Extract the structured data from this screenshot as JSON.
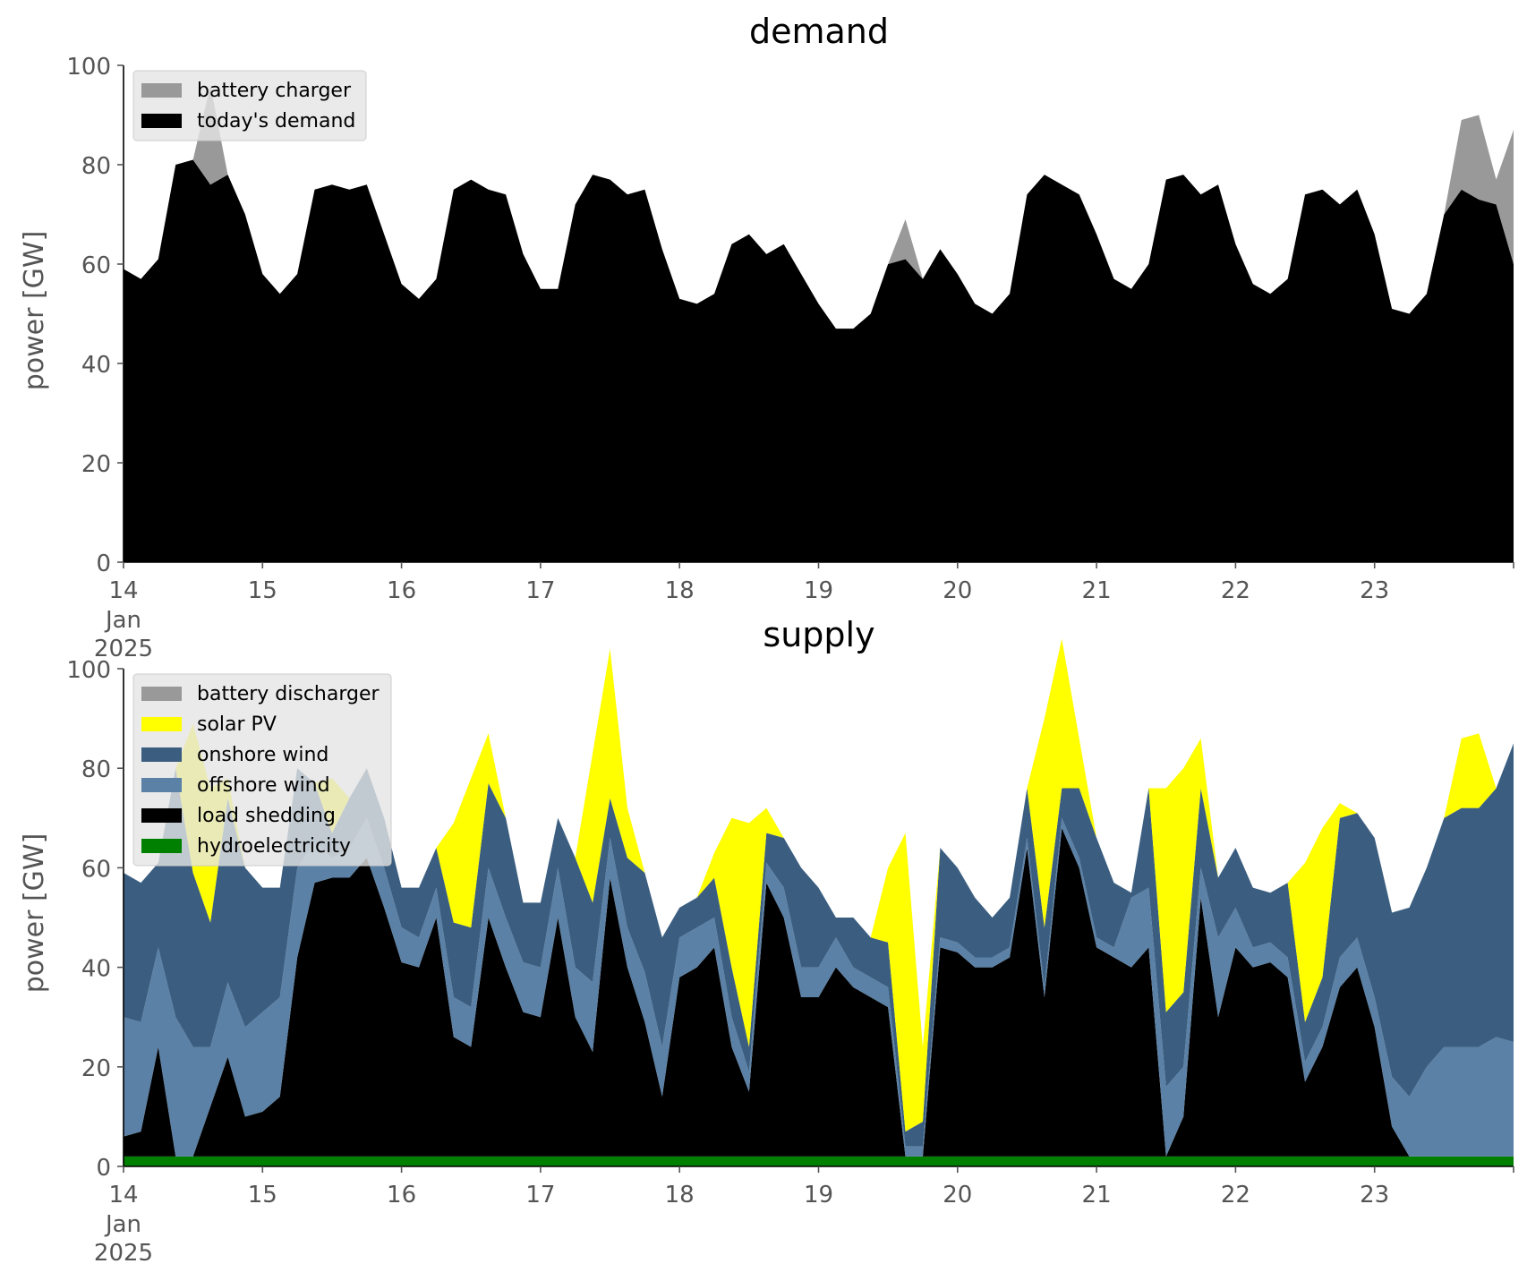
{
  "chart_data": [
    {
      "type": "area",
      "title": "demand",
      "xlabel": "",
      "ylabel": "power [GW]",
      "ylim": [
        0,
        100
      ],
      "xlim": [
        "2025-01-14T00:00",
        "2025-01-24T00:00"
      ],
      "yticks": [
        "0",
        "20",
        "40",
        "60",
        "80",
        "100"
      ],
      "xticks": [
        "14",
        "15",
        "16",
        "17",
        "18",
        "19",
        "20",
        "21",
        "22",
        "23"
      ],
      "xtick_sub": [
        "Jan",
        "2025"
      ],
      "legend_placement": "upper-left",
      "grid": false,
      "x_unit": "days since 2025-01-14 00:00 (3-hourly points)",
      "x": [
        0,
        0.125,
        0.25,
        0.375,
        0.5,
        0.625,
        0.75,
        0.875,
        1,
        1.125,
        1.25,
        1.375,
        1.5,
        1.625,
        1.75,
        1.875,
        2,
        2.125,
        2.25,
        2.375,
        2.5,
        2.625,
        2.75,
        2.875,
        3,
        3.125,
        3.25,
        3.375,
        3.5,
        3.625,
        3.75,
        3.875,
        4,
        4.125,
        4.25,
        4.375,
        4.5,
        4.625,
        4.75,
        4.875,
        5,
        5.125,
        5.25,
        5.375,
        5.5,
        5.625,
        5.75,
        5.875,
        6,
        6.125,
        6.25,
        6.375,
        6.5,
        6.625,
        6.75,
        6.875,
        7,
        7.125,
        7.25,
        7.375,
        7.5,
        7.625,
        7.75,
        7.875,
        8,
        8.125,
        8.25,
        8.375,
        8.5,
        8.625,
        8.75,
        8.875,
        9,
        9.125,
        9.25,
        9.375,
        9.5,
        9.625,
        9.75,
        9.875,
        10
      ],
      "series": [
        {
          "name": "today's demand",
          "color": "#000000",
          "values": [
            59,
            57,
            61,
            80,
            81,
            76,
            78,
            70,
            58,
            54,
            58,
            75,
            76,
            75,
            76,
            66,
            56,
            53,
            57,
            75,
            77,
            75,
            74,
            62,
            55,
            55,
            72,
            78,
            77,
            74,
            75,
            63,
            53,
            52,
            54,
            64,
            66,
            62,
            64,
            58,
            52,
            47,
            47,
            50,
            60,
            61,
            57,
            63,
            58,
            52,
            50,
            54,
            74,
            78,
            76,
            74,
            66,
            57,
            55,
            60,
            77,
            78,
            74,
            76,
            64,
            56,
            54,
            57,
            74,
            75,
            72,
            75,
            66,
            51,
            50,
            54,
            70,
            75,
            73,
            72,
            60
          ]
        },
        {
          "name": "battery charger",
          "color": "#999999",
          "values": [
            0,
            0,
            0,
            0,
            0,
            20,
            0,
            0,
            0,
            0,
            0,
            0,
            0,
            0,
            0,
            0,
            0,
            0,
            0,
            0,
            0,
            0,
            0,
            0,
            0,
            0,
            0,
            0,
            0,
            0,
            0,
            0,
            0,
            0,
            0,
            0,
            0,
            0,
            0,
            0,
            0,
            0,
            0,
            0,
            0,
            8,
            0,
            0,
            0,
            0,
            0,
            0,
            0,
            0,
            0,
            0,
            0,
            0,
            0,
            0,
            0,
            0,
            0,
            0,
            0,
            0,
            0,
            0,
            0,
            0,
            0,
            0,
            0,
            0,
            0,
            0,
            0,
            14,
            17,
            5,
            27
          ]
        }
      ]
    },
    {
      "type": "area",
      "title": "supply",
      "xlabel": "",
      "ylabel": "power [GW]",
      "ylim": [
        0,
        100
      ],
      "xlim": [
        "2025-01-14T00:00",
        "2025-01-24T00:00"
      ],
      "yticks": [
        "0",
        "20",
        "40",
        "60",
        "80",
        "100"
      ],
      "xticks": [
        "14",
        "15",
        "16",
        "17",
        "18",
        "19",
        "20",
        "21",
        "22",
        "23"
      ],
      "xtick_sub": [
        "Jan",
        "2025"
      ],
      "legend_placement": "upper-left",
      "grid": false,
      "x_unit": "days since 2025-01-14 00:00 (3-hourly points)",
      "x": [
        0,
        0.125,
        0.25,
        0.375,
        0.5,
        0.625,
        0.75,
        0.875,
        1,
        1.125,
        1.25,
        1.375,
        1.5,
        1.625,
        1.75,
        1.875,
        2,
        2.125,
        2.25,
        2.375,
        2.5,
        2.625,
        2.75,
        2.875,
        3,
        3.125,
        3.25,
        3.375,
        3.5,
        3.625,
        3.75,
        3.875,
        4,
        4.125,
        4.25,
        4.375,
        4.5,
        4.625,
        4.75,
        4.875,
        5,
        5.125,
        5.25,
        5.375,
        5.5,
        5.625,
        5.75,
        5.875,
        6,
        6.125,
        6.25,
        6.375,
        6.5,
        6.625,
        6.75,
        6.875,
        7,
        7.125,
        7.25,
        7.375,
        7.5,
        7.625,
        7.75,
        7.875,
        8,
        8.125,
        8.25,
        8.375,
        8.5,
        8.625,
        8.75,
        8.875,
        9,
        9.125,
        9.25,
        9.375,
        9.5,
        9.625,
        9.75,
        9.875,
        10
      ],
      "series": [
        {
          "name": "hydroelectricity",
          "color": "#008000",
          "values": [
            2,
            2,
            2,
            2,
            2,
            2,
            2,
            2,
            2,
            2,
            2,
            2,
            2,
            2,
            2,
            2,
            2,
            2,
            2,
            2,
            2,
            2,
            2,
            2,
            2,
            2,
            2,
            2,
            2,
            2,
            2,
            2,
            2,
            2,
            2,
            2,
            2,
            2,
            2,
            2,
            2,
            2,
            2,
            2,
            2,
            2,
            2,
            2,
            2,
            2,
            2,
            2,
            2,
            2,
            2,
            2,
            2,
            2,
            2,
            2,
            2,
            2,
            2,
            2,
            2,
            2,
            2,
            2,
            2,
            2,
            2,
            2,
            2,
            2,
            2,
            2,
            2,
            2,
            2,
            2,
            2
          ]
        },
        {
          "name": "load shedding",
          "color": "#000000",
          "values": [
            4,
            5,
            22,
            0,
            0,
            10,
            20,
            8,
            9,
            12,
            40,
            55,
            56,
            56,
            60,
            50,
            39,
            38,
            48,
            24,
            22,
            48,
            38,
            29,
            28,
            48,
            28,
            21,
            56,
            38,
            27,
            12,
            36,
            38,
            42,
            22,
            13,
            55,
            48,
            32,
            32,
            38,
            34,
            32,
            30,
            0,
            0,
            42,
            41,
            38,
            38,
            40,
            62,
            32,
            66,
            58,
            42,
            40,
            38,
            42,
            0,
            8,
            52,
            28,
            42,
            38,
            39,
            36,
            15,
            22,
            34,
            38,
            26,
            6,
            0,
            0,
            0,
            0,
            0,
            0,
            0
          ]
        },
        {
          "name": "offshore wind",
          "color": "#5b81a6",
          "values": [
            24,
            22,
            20,
            28,
            22,
            12,
            15,
            18,
            20,
            20,
            18,
            8,
            4,
            6,
            8,
            8,
            7,
            6,
            6,
            8,
            8,
            10,
            10,
            10,
            10,
            10,
            10,
            14,
            8,
            8,
            10,
            10,
            8,
            8,
            6,
            6,
            4,
            4,
            6,
            6,
            6,
            6,
            4,
            4,
            4,
            2,
            2,
            2,
            2,
            2,
            2,
            2,
            2,
            2,
            2,
            2,
            2,
            2,
            14,
            12,
            14,
            10,
            6,
            16,
            8,
            4,
            4,
            4,
            4,
            4,
            6,
            6,
            6,
            10,
            12,
            18,
            22,
            22,
            22,
            24,
            23
          ]
        },
        {
          "name": "onshore wind",
          "color": "#3b5e80",
          "values": [
            29,
            28,
            17,
            50,
            35,
            25,
            37,
            32,
            25,
            22,
            20,
            12,
            5,
            10,
            10,
            10,
            8,
            10,
            8,
            15,
            16,
            17,
            20,
            12,
            13,
            10,
            22,
            16,
            8,
            14,
            20,
            22,
            6,
            6,
            8,
            10,
            5,
            6,
            10,
            20,
            16,
            4,
            10,
            8,
            9,
            3,
            5,
            18,
            15,
            12,
            8,
            10,
            10,
            12,
            6,
            14,
            20,
            13,
            1,
            20,
            15,
            15,
            16,
            12,
            12,
            12,
            10,
            15,
            8,
            10,
            28,
            25,
            32,
            33,
            38,
            40,
            46,
            48,
            48,
            50,
            60
          ]
        },
        {
          "name": "solar PV",
          "color": "#ffff00",
          "values": [
            0,
            0,
            0,
            0,
            30,
            27,
            4,
            0,
            0,
            0,
            0,
            0,
            11,
            0,
            0,
            0,
            0,
            0,
            0,
            20,
            30,
            10,
            0,
            0,
            0,
            0,
            0,
            30,
            30,
            10,
            0,
            0,
            0,
            0,
            5,
            30,
            45,
            5,
            0,
            0,
            0,
            0,
            0,
            0,
            15,
            60,
            15,
            0,
            0,
            0,
            0,
            0,
            0,
            42,
            30,
            10,
            0,
            0,
            0,
            0,
            45,
            45,
            10,
            0,
            0,
            0,
            0,
            0,
            32,
            30,
            3,
            0,
            0,
            0,
            0,
            0,
            0,
            14,
            15,
            0,
            0
          ]
        },
        {
          "name": "battery discharger",
          "color": "#999999",
          "values": [
            0,
            0,
            0,
            0,
            0,
            0,
            0,
            0,
            0,
            0,
            0,
            0,
            0,
            0,
            0,
            0,
            0,
            0,
            0,
            0,
            0,
            0,
            0,
            0,
            0,
            0,
            0,
            0,
            0,
            0,
            0,
            0,
            0,
            0,
            0,
            0,
            0,
            0,
            0,
            0,
            0,
            0,
            0,
            0,
            0,
            0,
            0,
            0,
            0,
            0,
            0,
            0,
            0,
            0,
            0,
            0,
            0,
            0,
            0,
            0,
            0,
            0,
            0,
            0,
            0,
            0,
            0,
            0,
            0,
            0,
            0,
            0,
            0,
            0,
            0,
            0,
            0,
            0,
            0,
            0,
            0
          ]
        }
      ]
    }
  ]
}
